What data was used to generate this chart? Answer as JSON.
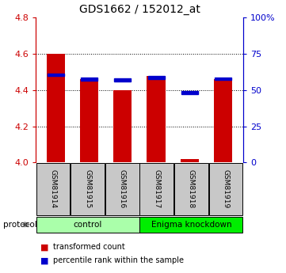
{
  "title": "GDS1662 / 152012_at",
  "samples": [
    "GSM81914",
    "GSM81915",
    "GSM81916",
    "GSM81917",
    "GSM81918",
    "GSM81919"
  ],
  "red_values": [
    4.6,
    4.46,
    4.4,
    4.48,
    4.02,
    4.46
  ],
  "blue_values": [
    4.485,
    4.462,
    4.455,
    4.468,
    4.385,
    4.463
  ],
  "ylim_left": [
    4.0,
    4.8
  ],
  "yticks_left": [
    4.0,
    4.2,
    4.4,
    4.6,
    4.8
  ],
  "yticks_right": [
    0,
    25,
    50,
    75,
    100
  ],
  "grid_values": [
    4.2,
    4.4,
    4.6
  ],
  "bar_width": 0.55,
  "red_color": "#cc0000",
  "blue_color": "#0000cc",
  "control_color": "#aaffaa",
  "knockdown_color": "#00ee00",
  "legend_items": [
    {
      "label": "transformed count",
      "color": "#cc0000"
    },
    {
      "label": "percentile rank within the sample",
      "color": "#0000cc"
    }
  ],
  "protocol_label": "protocol",
  "background_color": "#ffffff",
  "label_area_color": "#c8c8c8",
  "title_fontsize": 10,
  "axis_fontsize": 8,
  "label_fontsize": 6.5,
  "proto_fontsize": 7.5,
  "legend_fontsize": 7
}
